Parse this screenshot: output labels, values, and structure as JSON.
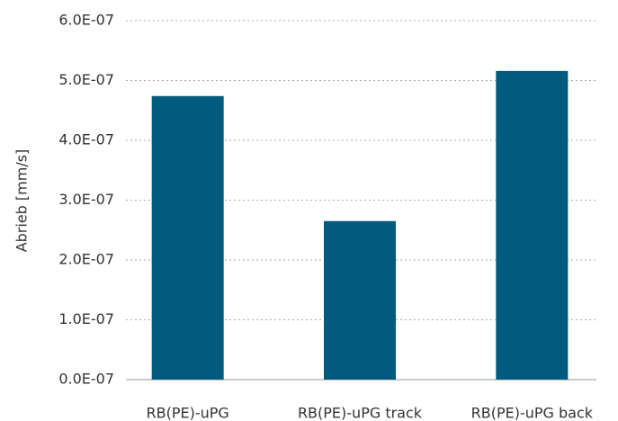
{
  "chart_data": {
    "type": "bar",
    "ylabel": "Abrieb [mm/s]",
    "categories": [
      "RB(PE)-uPG",
      "RB(PE)-uPG track",
      "RB(PE)-uPG back"
    ],
    "values": [
      4.74e-07,
      2.65e-07,
      5.16e-07
    ],
    "color": "#005b7e",
    "ylim": [
      0,
      6e-07
    ],
    "yticks": [
      {
        "value": 0,
        "label": "0.0E-07"
      },
      {
        "value": 1e-07,
        "label": "1.0E-07"
      },
      {
        "value": 2e-07,
        "label": "2.0E-07"
      },
      {
        "value": 3e-07,
        "label": "3.0E-07"
      },
      {
        "value": 4e-07,
        "label": "4.0E-07"
      },
      {
        "value": 5e-07,
        "label": "5.0E-07"
      },
      {
        "value": 6e-07,
        "label": "6.0E-07"
      }
    ],
    "grid": true
  }
}
